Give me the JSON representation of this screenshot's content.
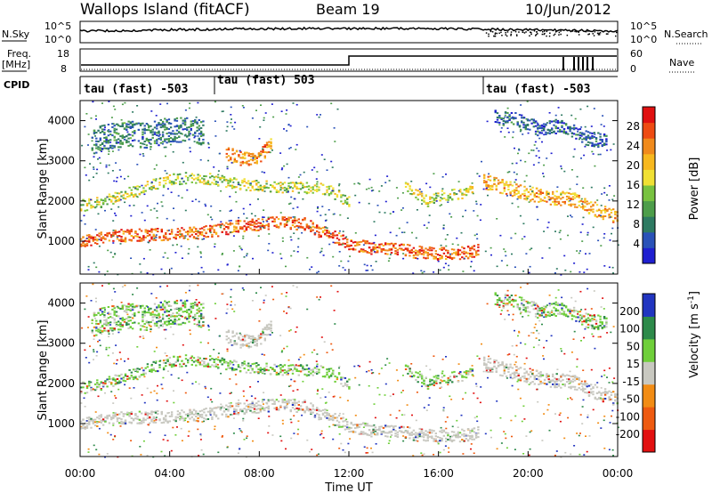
{
  "header": {
    "site": "Wallops Island (fitACF)",
    "beam": "Beam 19",
    "date": "10/Jun/2012"
  },
  "aux_panels": {
    "nsky_label": "N.Sky",
    "nsky_ticks": [
      "10^5",
      "10^0"
    ],
    "nsearch_label": "N.Search",
    "nsearch_ticks": [
      "10^5",
      "10^0"
    ],
    "freq_label": "Freq.",
    "freq_unit": "[MHz]",
    "freq_ticks": [
      "18",
      "8"
    ],
    "nave_label": "Nave",
    "nave_ticks": [
      "60",
      "0"
    ],
    "cpid_label": "CPID"
  },
  "cpid_segments": [
    {
      "label": "tau (fast) -503",
      "start_hour": 0
    },
    {
      "label": "tau (fast) 503",
      "start_hour": 6
    },
    {
      "label": "tau (fast) -503",
      "start_hour": 18
    }
  ],
  "colors": {
    "power": [
      "#1f1fd0",
      "#2a52b8",
      "#2e7a62",
      "#4d9d4a",
      "#78c240",
      "#f0e034",
      "#f7b81e",
      "#f08a1c",
      "#ee4b12",
      "#e01010"
    ],
    "velocity": [
      "#2135c0",
      "#2d8a4a",
      "#6fcf3a",
      "#c8c8c0",
      "#f28c14",
      "#ee5a10",
      "#e21010"
    ],
    "background": "#ffffff"
  },
  "chart_data": [
    {
      "type": "heatmap",
      "name": "power",
      "title": "",
      "ylabel": "Slant Range [km]",
      "y_ticks": [
        "1000",
        "2000",
        "3000",
        "4000"
      ],
      "ylim": [
        180,
        4500
      ],
      "xlim": [
        0,
        24
      ],
      "colorbar_label": "Power [dB]",
      "colorbar_ticks": [
        "4",
        "8",
        "12",
        "16",
        "20",
        "24",
        "28"
      ],
      "colorbar_range": [
        0,
        32
      ],
      "bands": [
        {
          "x": [
            0,
            0.5,
            1.5,
            3,
            4,
            5,
            6,
            7,
            8,
            9,
            10,
            10.5,
            11,
            12,
            13,
            14,
            15,
            16,
            17,
            17.8
          ],
          "y": [
            1000,
            1050,
            1150,
            1180,
            1200,
            1220,
            1280,
            1380,
            1450,
            1480,
            1450,
            1300,
            1200,
            950,
            850,
            820,
            750,
            700,
            720,
            800
          ],
          "width": 220,
          "value": 26
        },
        {
          "x": [
            0,
            1,
            2,
            3,
            4,
            5,
            6,
            7,
            8,
            9,
            10,
            11,
            12
          ],
          "y": [
            1900,
            2000,
            2200,
            2400,
            2550,
            2600,
            2550,
            2450,
            2400,
            2350,
            2350,
            2300,
            2000
          ],
          "width": 200,
          "value": 16
        },
        {
          "x": [
            0.5,
            1,
            2,
            3,
            4,
            5,
            5.5
          ],
          "y": [
            3500,
            3600,
            3700,
            3650,
            3800,
            3800,
            3700
          ],
          "width": 450,
          "value": 8
        },
        {
          "x": [
            6.5,
            7,
            7.5,
            8,
            8.5
          ],
          "y": [
            3200,
            3100,
            3050,
            3150,
            3400
          ],
          "width": 250,
          "value": 24
        },
        {
          "x": [
            14.5,
            15,
            15.5,
            16,
            17,
            17.5
          ],
          "y": [
            2400,
            2200,
            2000,
            2150,
            2200,
            2350
          ],
          "width": 180,
          "value": 17
        },
        {
          "x": [
            18,
            19,
            20,
            21,
            22,
            23,
            24
          ],
          "y": [
            2500,
            2350,
            2200,
            2100,
            2050,
            1800,
            1600
          ],
          "width": 250,
          "value": 22
        },
        {
          "x": [
            18.5,
            19.5,
            20.5,
            21.5,
            22.5,
            23.5
          ],
          "y": [
            4100,
            4050,
            3800,
            3900,
            3600,
            3500
          ],
          "width": 250,
          "value": 6
        }
      ]
    },
    {
      "type": "heatmap",
      "name": "velocity",
      "title": "",
      "ylabel": "Slant Range [km]",
      "y_ticks": [
        "1000",
        "2000",
        "3000",
        "4000"
      ],
      "ylim": [
        180,
        4500
      ],
      "xlim": [
        0,
        24
      ],
      "xlabel": "Time UT",
      "x_ticks": [
        "00:00",
        "04:00",
        "08:00",
        "12:00",
        "16:00",
        "20:00",
        "00:00"
      ],
      "colorbar_label": "Velocity [m s^-1]",
      "colorbar_ticks": [
        "200",
        "100",
        "50",
        "15",
        "-15",
        "-50",
        "-100",
        "-200"
      ]
    }
  ]
}
